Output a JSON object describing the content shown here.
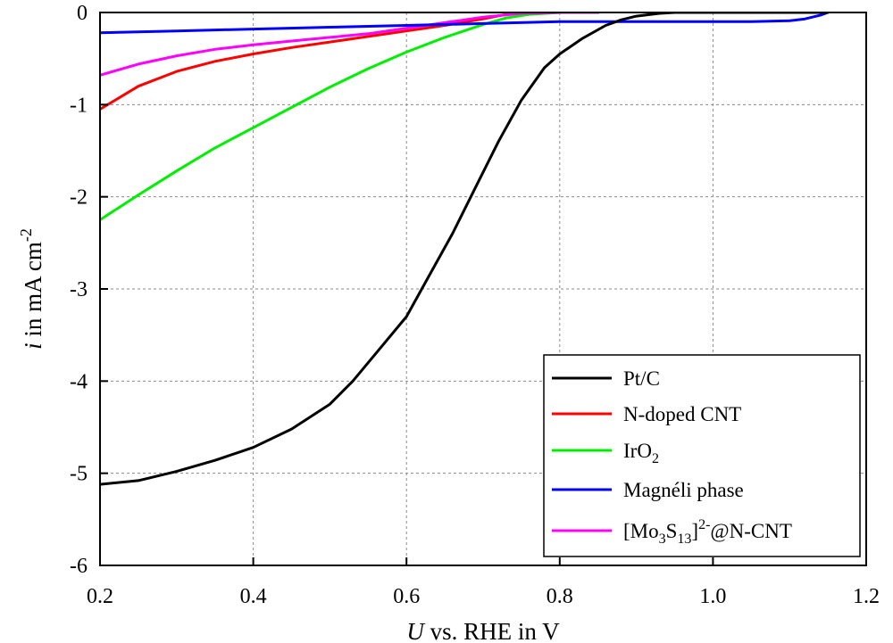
{
  "chart_data": {
    "type": "line",
    "title": "",
    "xlabel": {
      "italic": "U",
      "rest": " vs. RHE in V"
    },
    "ylabel": {
      "italic": "i",
      "rest": " in mA cm",
      "sup": "-2"
    },
    "xlim": [
      0.2,
      1.2
    ],
    "ylim": [
      -6,
      0
    ],
    "xticks": [
      "0.2",
      "0.4",
      "0.6",
      "0.8",
      "1.0",
      "1.2"
    ],
    "yticks": [
      "0",
      "-1",
      "-2",
      "-3",
      "-4",
      "-5",
      "-6"
    ],
    "grid": true,
    "legend_position": "bottom-right",
    "series": [
      {
        "name": "Pt/C",
        "legend": {
          "base": "Pt/C"
        },
        "color": "#000000",
        "x": [
          0.2,
          0.25,
          0.3,
          0.35,
          0.4,
          0.45,
          0.5,
          0.53,
          0.56,
          0.6,
          0.63,
          0.66,
          0.69,
          0.72,
          0.75,
          0.78,
          0.8,
          0.83,
          0.86,
          0.88,
          0.9,
          0.93,
          0.95,
          1.0,
          1.05,
          1.1,
          1.15
        ],
        "y": [
          -5.12,
          -5.08,
          -4.98,
          -4.86,
          -4.72,
          -4.52,
          -4.25,
          -4.0,
          -3.7,
          -3.3,
          -2.85,
          -2.4,
          -1.9,
          -1.4,
          -0.95,
          -0.6,
          -0.45,
          -0.28,
          -0.14,
          -0.08,
          -0.04,
          -0.01,
          0.0,
          0.0,
          0.0,
          0.0,
          0.0
        ]
      },
      {
        "name": "N-doped CNT",
        "legend": {
          "base": "N-doped CNT"
        },
        "color": "#ff0000",
        "x": [
          0.2,
          0.25,
          0.3,
          0.35,
          0.4,
          0.45,
          0.5,
          0.55,
          0.6,
          0.65,
          0.7,
          0.73,
          0.76,
          0.8,
          0.85
        ],
        "y": [
          -1.05,
          -0.8,
          -0.64,
          -0.53,
          -0.45,
          -0.38,
          -0.32,
          -0.26,
          -0.2,
          -0.14,
          -0.07,
          -0.02,
          0.0,
          0.0,
          0.0
        ]
      },
      {
        "name": "IrO2",
        "legend": {
          "base": "IrO",
          "sub": "2"
        },
        "color": "#00ee00",
        "x": [
          0.2,
          0.25,
          0.3,
          0.35,
          0.4,
          0.45,
          0.5,
          0.55,
          0.6,
          0.65,
          0.7,
          0.73,
          0.76,
          0.8,
          0.85
        ],
        "y": [
          -2.25,
          -1.98,
          -1.72,
          -1.47,
          -1.25,
          -1.03,
          -0.81,
          -0.61,
          -0.43,
          -0.27,
          -0.13,
          -0.06,
          -0.02,
          0.0,
          0.0
        ]
      },
      {
        "name": "Magnéli phase",
        "legend": {
          "base": "Magnéli phase"
        },
        "color": "#0000ff",
        "x": [
          0.2,
          0.3,
          0.4,
          0.5,
          0.6,
          0.7,
          0.8,
          0.9,
          1.0,
          1.05,
          1.1,
          1.12,
          1.14,
          1.15
        ],
        "y": [
          -0.22,
          -0.2,
          -0.18,
          -0.16,
          -0.14,
          -0.12,
          -0.1,
          -0.1,
          -0.1,
          -0.1,
          -0.09,
          -0.07,
          -0.03,
          0.0
        ]
      },
      {
        "name": "[Mo3S13]2-@N-CNT",
        "legend": {
          "base": "[Mo",
          "sub1": "3",
          "mid": "S",
          "sub2": "13",
          "close": "]",
          "sup": "2-",
          "end": "@N-CNT"
        },
        "color": "#ff00ff",
        "x": [
          0.2,
          0.25,
          0.3,
          0.35,
          0.4,
          0.45,
          0.5,
          0.55,
          0.6,
          0.65,
          0.7,
          0.75,
          0.8,
          0.85
        ],
        "y": [
          -0.68,
          -0.56,
          -0.47,
          -0.4,
          -0.35,
          -0.31,
          -0.27,
          -0.23,
          -0.17,
          -0.11,
          -0.05,
          -0.01,
          0.0,
          0.0
        ]
      }
    ]
  }
}
